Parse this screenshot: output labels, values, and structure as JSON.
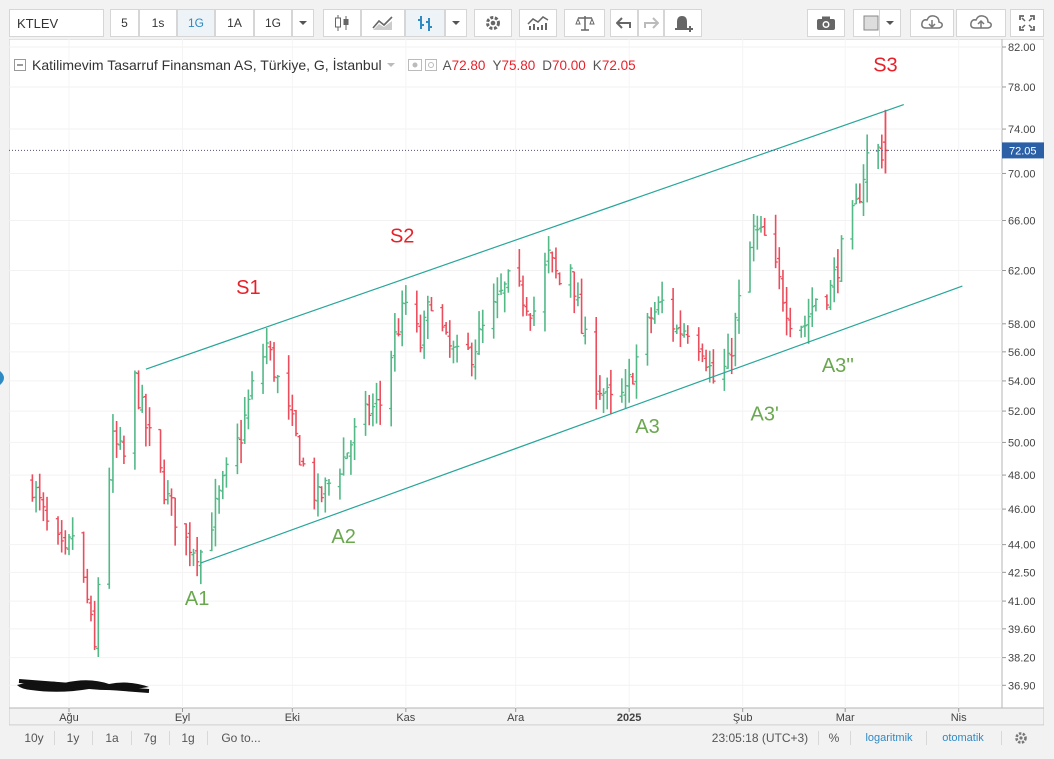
{
  "toolbar": {
    "symbol": "KTLEV",
    "intervals": [
      "5",
      "1s",
      "1G",
      "1A",
      "1G"
    ],
    "active_interval_index": 2
  },
  "legend": {
    "title": "Katilimevim Tasarruf Finansman AS, Türkiye, G, İstanbul",
    "open_label": "A",
    "open": "72.80",
    "high_label": "Y",
    "high": "75.80",
    "low_label": "D",
    "low": "70.00",
    "close_label": "K",
    "close": "72.05"
  },
  "price_tag": "72.05",
  "bottombar": {
    "ranges": [
      "10y",
      "1y",
      "1a",
      "7g",
      "1g"
    ],
    "goto": "Go to...",
    "time": "23:05:18 (UTC+3)",
    "percent": "%",
    "log": "logaritmik",
    "auto": "otomatik"
  },
  "colors": {
    "up": "#53b987",
    "down": "#eb4d5c",
    "channel": "#26a69a",
    "support_label": "#6aa84f",
    "resistance_label": "#e8202a",
    "accent": "#2f8ac4"
  },
  "chart_data": {
    "type": "ohlc",
    "scale": "log",
    "ylim": [
      36.5,
      82.0
    ],
    "y_ticks": [
      "82.00",
      "78.00",
      "74.00",
      "70.00",
      "66.00",
      "62.00",
      "58.00",
      "56.00",
      "54.00",
      "52.00",
      "50.00",
      "48.00",
      "46.00",
      "44.00",
      "42.50",
      "41.00",
      "39.60",
      "38.20",
      "36.90"
    ],
    "x_ticks": [
      "Ağu",
      "Eyl",
      "Eki",
      "Kas",
      "Ara",
      "2025",
      "Şub",
      "Mar",
      "Nis"
    ],
    "close_series": [
      {
        "x": "2024-07-22",
        "y": 47.5
      },
      {
        "x": "2024-07-26",
        "y": 45.0
      },
      {
        "x": "2024-07-31",
        "y": 43.2
      },
      {
        "x": "2024-08-02",
        "y": 44.6
      },
      {
        "x": "2024-08-06",
        "y": 41.0
      },
      {
        "x": "2024-08-08",
        "y": 38.5
      },
      {
        "x": "2024-08-09",
        "y": 42.0
      },
      {
        "x": "2024-08-13",
        "y": 50.0
      },
      {
        "x": "2024-08-16",
        "y": 49.0
      },
      {
        "x": "2024-08-19",
        "y": 54.0
      },
      {
        "x": "2024-08-22",
        "y": 51.0
      },
      {
        "x": "2024-08-28",
        "y": 46.5
      },
      {
        "x": "2024-09-02",
        "y": 44.2
      },
      {
        "x": "2024-09-06",
        "y": 43.6
      },
      {
        "x": "2024-09-10",
        "y": 46.0
      },
      {
        "x": "2024-09-13",
        "y": 48.0
      },
      {
        "x": "2024-09-17",
        "y": 50.5
      },
      {
        "x": "2024-09-20",
        "y": 53.5
      },
      {
        "x": "2024-09-24",
        "y": 56.5
      },
      {
        "x": "2024-09-27",
        "y": 54.0
      },
      {
        "x": "2024-10-01",
        "y": 51.0
      },
      {
        "x": "2024-10-04",
        "y": 48.5
      },
      {
        "x": "2024-10-08",
        "y": 46.5
      },
      {
        "x": "2024-10-11",
        "y": 47.5
      },
      {
        "x": "2024-10-15",
        "y": 49.0
      },
      {
        "x": "2024-10-18",
        "y": 50.5
      },
      {
        "x": "2024-10-22",
        "y": 52.0
      },
      {
        "x": "2024-10-25",
        "y": 52.5
      },
      {
        "x": "2024-10-29",
        "y": 57.0
      },
      {
        "x": "2024-11-01",
        "y": 59.5
      },
      {
        "x": "2024-11-05",
        "y": 56.5
      },
      {
        "x": "2024-11-08",
        "y": 60.0
      },
      {
        "x": "2024-11-12",
        "y": 56.5
      },
      {
        "x": "2024-11-15",
        "y": 55.5
      },
      {
        "x": "2024-11-19",
        "y": 56.0
      },
      {
        "x": "2024-11-22",
        "y": 57.5
      },
      {
        "x": "2024-11-26",
        "y": 59.5
      },
      {
        "x": "2024-11-29",
        "y": 61.0
      },
      {
        "x": "2024-12-03",
        "y": 60.0
      },
      {
        "x": "2024-12-06",
        "y": 59.0
      },
      {
        "x": "2024-12-10",
        "y": 63.0
      },
      {
        "x": "2024-12-13",
        "y": 61.0
      },
      {
        "x": "2024-12-16",
        "y": 62.5
      },
      {
        "x": "2024-12-19",
        "y": 57.5
      },
      {
        "x": "2024-12-23",
        "y": 54.0
      },
      {
        "x": "2024-12-27",
        "y": 52.5
      },
      {
        "x": "2024-12-31",
        "y": 53.0
      },
      {
        "x": "2025-01-03",
        "y": 55.5
      },
      {
        "x": "2025-01-07",
        "y": 58.5
      },
      {
        "x": "2025-01-10",
        "y": 59.5
      },
      {
        "x": "2025-01-14",
        "y": 57.5
      },
      {
        "x": "2025-01-17",
        "y": 57.8
      },
      {
        "x": "2025-01-21",
        "y": 56.5
      },
      {
        "x": "2025-01-24",
        "y": 54.0
      },
      {
        "x": "2025-01-28",
        "y": 55.0
      },
      {
        "x": "2025-01-31",
        "y": 59.5
      },
      {
        "x": "2025-02-04",
        "y": 65.0
      },
      {
        "x": "2025-02-07",
        "y": 64.5
      },
      {
        "x": "2025-02-11",
        "y": 61.0
      },
      {
        "x": "2025-02-14",
        "y": 58.5
      },
      {
        "x": "2025-02-18",
        "y": 58.0
      },
      {
        "x": "2025-02-21",
        "y": 60.0
      },
      {
        "x": "2025-02-25",
        "y": 60.5
      },
      {
        "x": "2025-02-28",
        "y": 63.5
      },
      {
        "x": "2025-03-04",
        "y": 67.0
      },
      {
        "x": "2025-03-07",
        "y": 71.5
      },
      {
        "x": "2025-03-10",
        "y": 72.05
      }
    ],
    "last_bar": {
      "x": "2025-03-12",
      "open": 72.8,
      "high": 75.8,
      "low": 70.0,
      "close": 72.05
    },
    "channel_lines": [
      {
        "name": "upper",
        "points": [
          {
            "x": "2024-08-22",
            "y": 54.8
          },
          {
            "x": "2025-03-17",
            "y": 76.3
          }
        ]
      },
      {
        "name": "lower",
        "points": [
          {
            "x": "2024-09-06",
            "y": 43.0
          },
          {
            "x": "2025-04-02",
            "y": 60.8
          }
        ]
      }
    ],
    "annotations": [
      {
        "text": "S1",
        "x": "2024-09-19",
        "y": 60.2,
        "kind": "resistance"
      },
      {
        "text": "S2",
        "x": "2024-10-31",
        "y": 64.2,
        "kind": "resistance"
      },
      {
        "text": "S3",
        "x": "2025-03-12",
        "y": 79.5,
        "kind": "resistance"
      },
      {
        "text": "A1",
        "x": "2024-09-05",
        "y": 40.8,
        "kind": "support"
      },
      {
        "text": "A2",
        "x": "2024-10-15",
        "y": 44.1,
        "kind": "support"
      },
      {
        "text": "A3",
        "x": "2025-01-06",
        "y": 50.6,
        "kind": "support"
      },
      {
        "text": "A3'",
        "x": "2025-02-07",
        "y": 51.4,
        "kind": "support"
      },
      {
        "text": "A3''",
        "x": "2025-02-27",
        "y": 54.6,
        "kind": "support"
      }
    ]
  }
}
